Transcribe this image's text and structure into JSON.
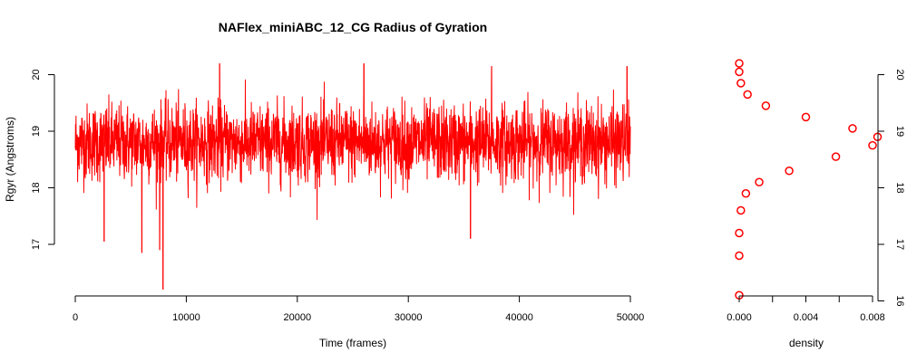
{
  "chart_data": [
    {
      "type": "line",
      "title": "NAFlex_miniABC_12_CG Radius of Gyration",
      "xlabel": "Time (frames)",
      "ylabel": "Rgyr (Angstroms)",
      "xlim": [
        0,
        50000
      ],
      "ylim": [
        16.2,
        20.2
      ],
      "x_ticks": [
        "0",
        "10000",
        "20000",
        "30000",
        "40000",
        "50000"
      ],
      "y_ticks": [
        "17",
        "18",
        "19",
        "20"
      ],
      "series": [
        {
          "color": "#ff0000",
          "summary": {
            "n_frames": 50000,
            "mean": 18.8,
            "sd": 0.34,
            "min": 16.2,
            "max": 20.2
          },
          "notable_points": [
            {
              "x": 7900,
              "y": 16.2
            },
            {
              "x": 6000,
              "y": 16.85
            },
            {
              "x": 7600,
              "y": 16.9
            },
            {
              "x": 2600,
              "y": 17.05
            },
            {
              "x": 35600,
              "y": 17.1
            },
            {
              "x": 13000,
              "y": 20.2
            },
            {
              "x": 26000,
              "y": 20.2
            },
            {
              "x": 37500,
              "y": 20.15
            },
            {
              "x": 49700,
              "y": 20.15
            }
          ]
        }
      ]
    },
    {
      "type": "scatter",
      "title": "",
      "xlabel": "density",
      "ylabel": "",
      "xlim": [
        0,
        0.008
      ],
      "ylim": [
        16.2,
        20.2
      ],
      "x_ticks": [
        "0.000",
        "0.004",
        "0.008"
      ],
      "y_ticks": [
        "16",
        "17",
        "18",
        "19",
        "20"
      ],
      "series": [
        {
          "color": "#ff0000",
          "marker": "open-circle",
          "x": [
            0.0,
            0.0,
            0.0,
            0.0001,
            0.0004,
            0.0012,
            0.003,
            0.0058,
            0.008,
            0.0083,
            0.0068,
            0.004,
            0.0016,
            0.0005,
            0.0001,
            0.0,
            0.0
          ],
          "y": [
            16.1,
            16.8,
            17.2,
            17.6,
            17.9,
            18.1,
            18.3,
            18.55,
            18.75,
            18.9,
            19.05,
            19.25,
            19.45,
            19.65,
            19.85,
            20.05,
            20.2
          ]
        }
      ]
    }
  ]
}
